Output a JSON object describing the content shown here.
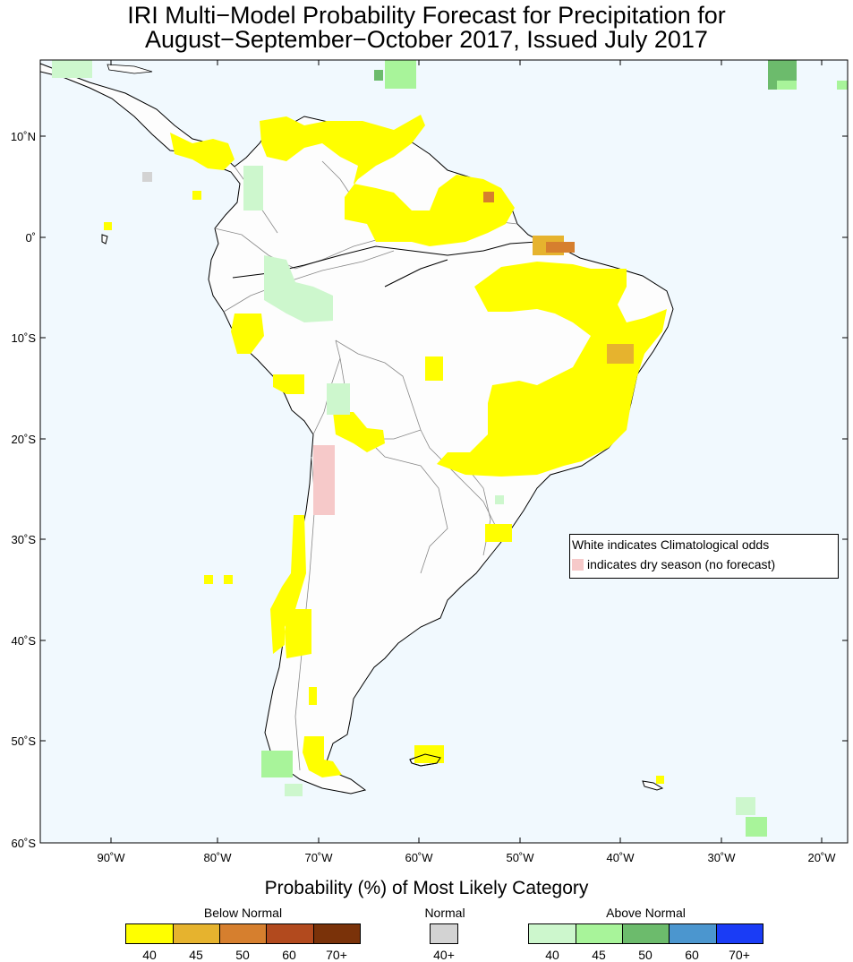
{
  "title": {
    "line1": "IRI Multi−Model Probability Forecast for Precipitation for",
    "line2": "August−September−October 2017, Issued July 2017"
  },
  "map": {
    "ocean_color": "#f1f9fe",
    "land_color": "#fdfdfd",
    "lat_labels": [
      "10˚N",
      "0˚",
      "10˚S",
      "20˚S",
      "30˚S",
      "40˚S",
      "50˚S",
      "60˚S"
    ],
    "lon_labels": [
      "90˚W",
      "80˚W",
      "70˚W",
      "60˚W",
      "50˚W",
      "40˚W",
      "30˚W",
      "20˚W"
    ]
  },
  "legend": {
    "line1": "White indicates Climatological odds",
    "line2": "indicates dry season (no forecast)",
    "dry_color": "#f6c9c9"
  },
  "colorbar": {
    "title": "Probability (%) of Most Likely Category",
    "below_label": "Below Normal",
    "normal_label": "Normal",
    "above_label": "Above Normal",
    "below_colors": [
      "#ffff00",
      "#e6b32e",
      "#d67f2e",
      "#b24a1e",
      "#7a3209"
    ],
    "below_ticks": [
      "40",
      "45",
      "50",
      "60",
      "70+"
    ],
    "normal_color": "#d3d3d3",
    "normal_tick": "40+",
    "above_colors": [
      "#cdf7cd",
      "#a8f49a",
      "#6cbb6c",
      "#4b96cf",
      "#1a3cf6"
    ],
    "above_ticks": [
      "40",
      "45",
      "50",
      "60",
      "70+"
    ]
  }
}
